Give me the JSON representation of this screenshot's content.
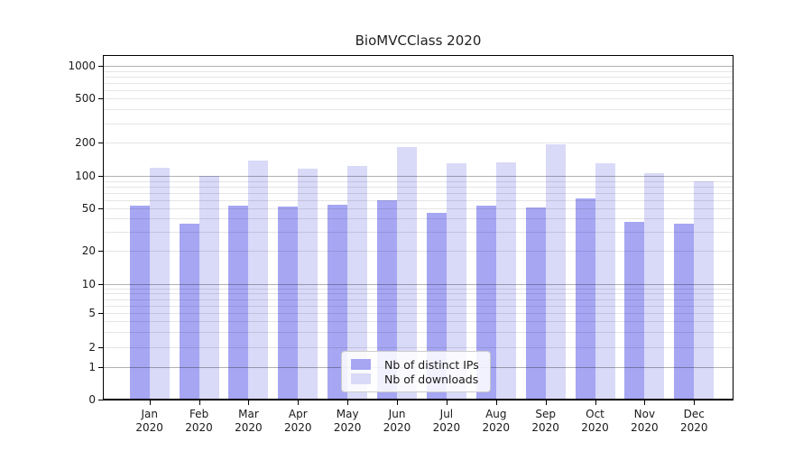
{
  "chart_data": {
    "type": "bar",
    "title": "BioMVCClass 2020",
    "year_label": "2020",
    "categories": [
      "Jan",
      "Feb",
      "Mar",
      "Apr",
      "May",
      "Jun",
      "Jul",
      "Aug",
      "Sep",
      "Oct",
      "Nov",
      "Dec"
    ],
    "series": [
      {
        "name": "Nb of distinct IPs",
        "color": "#a6a6f3",
        "values": [
          53,
          36,
          53,
          52,
          54,
          60,
          45,
          53,
          51,
          62,
          37,
          36
        ]
      },
      {
        "name": "Nb of downloads",
        "color": "#d9d9f8",
        "values": [
          120,
          100,
          139,
          116,
          124,
          183,
          130,
          134,
          194,
          130,
          106,
          90
        ]
      }
    ],
    "xlabel": "",
    "ylabel": "",
    "y_axis": {
      "scale": "symlog",
      "ticks": [
        0,
        1,
        2,
        5,
        10,
        20,
        50,
        100,
        200,
        500,
        1000
      ],
      "ylim": [
        0,
        1200
      ]
    },
    "legend": {
      "position": "lower center",
      "entries": [
        "Nb of distinct IPs",
        "Nb of downloads"
      ]
    },
    "grid": {
      "orientation": "horizontal",
      "major_at": [
        1,
        10,
        100,
        1000
      ],
      "minor": "2-9 per decade",
      "major_color": "#b3b3b3",
      "minor_color": "#e6e6e6"
    }
  }
}
